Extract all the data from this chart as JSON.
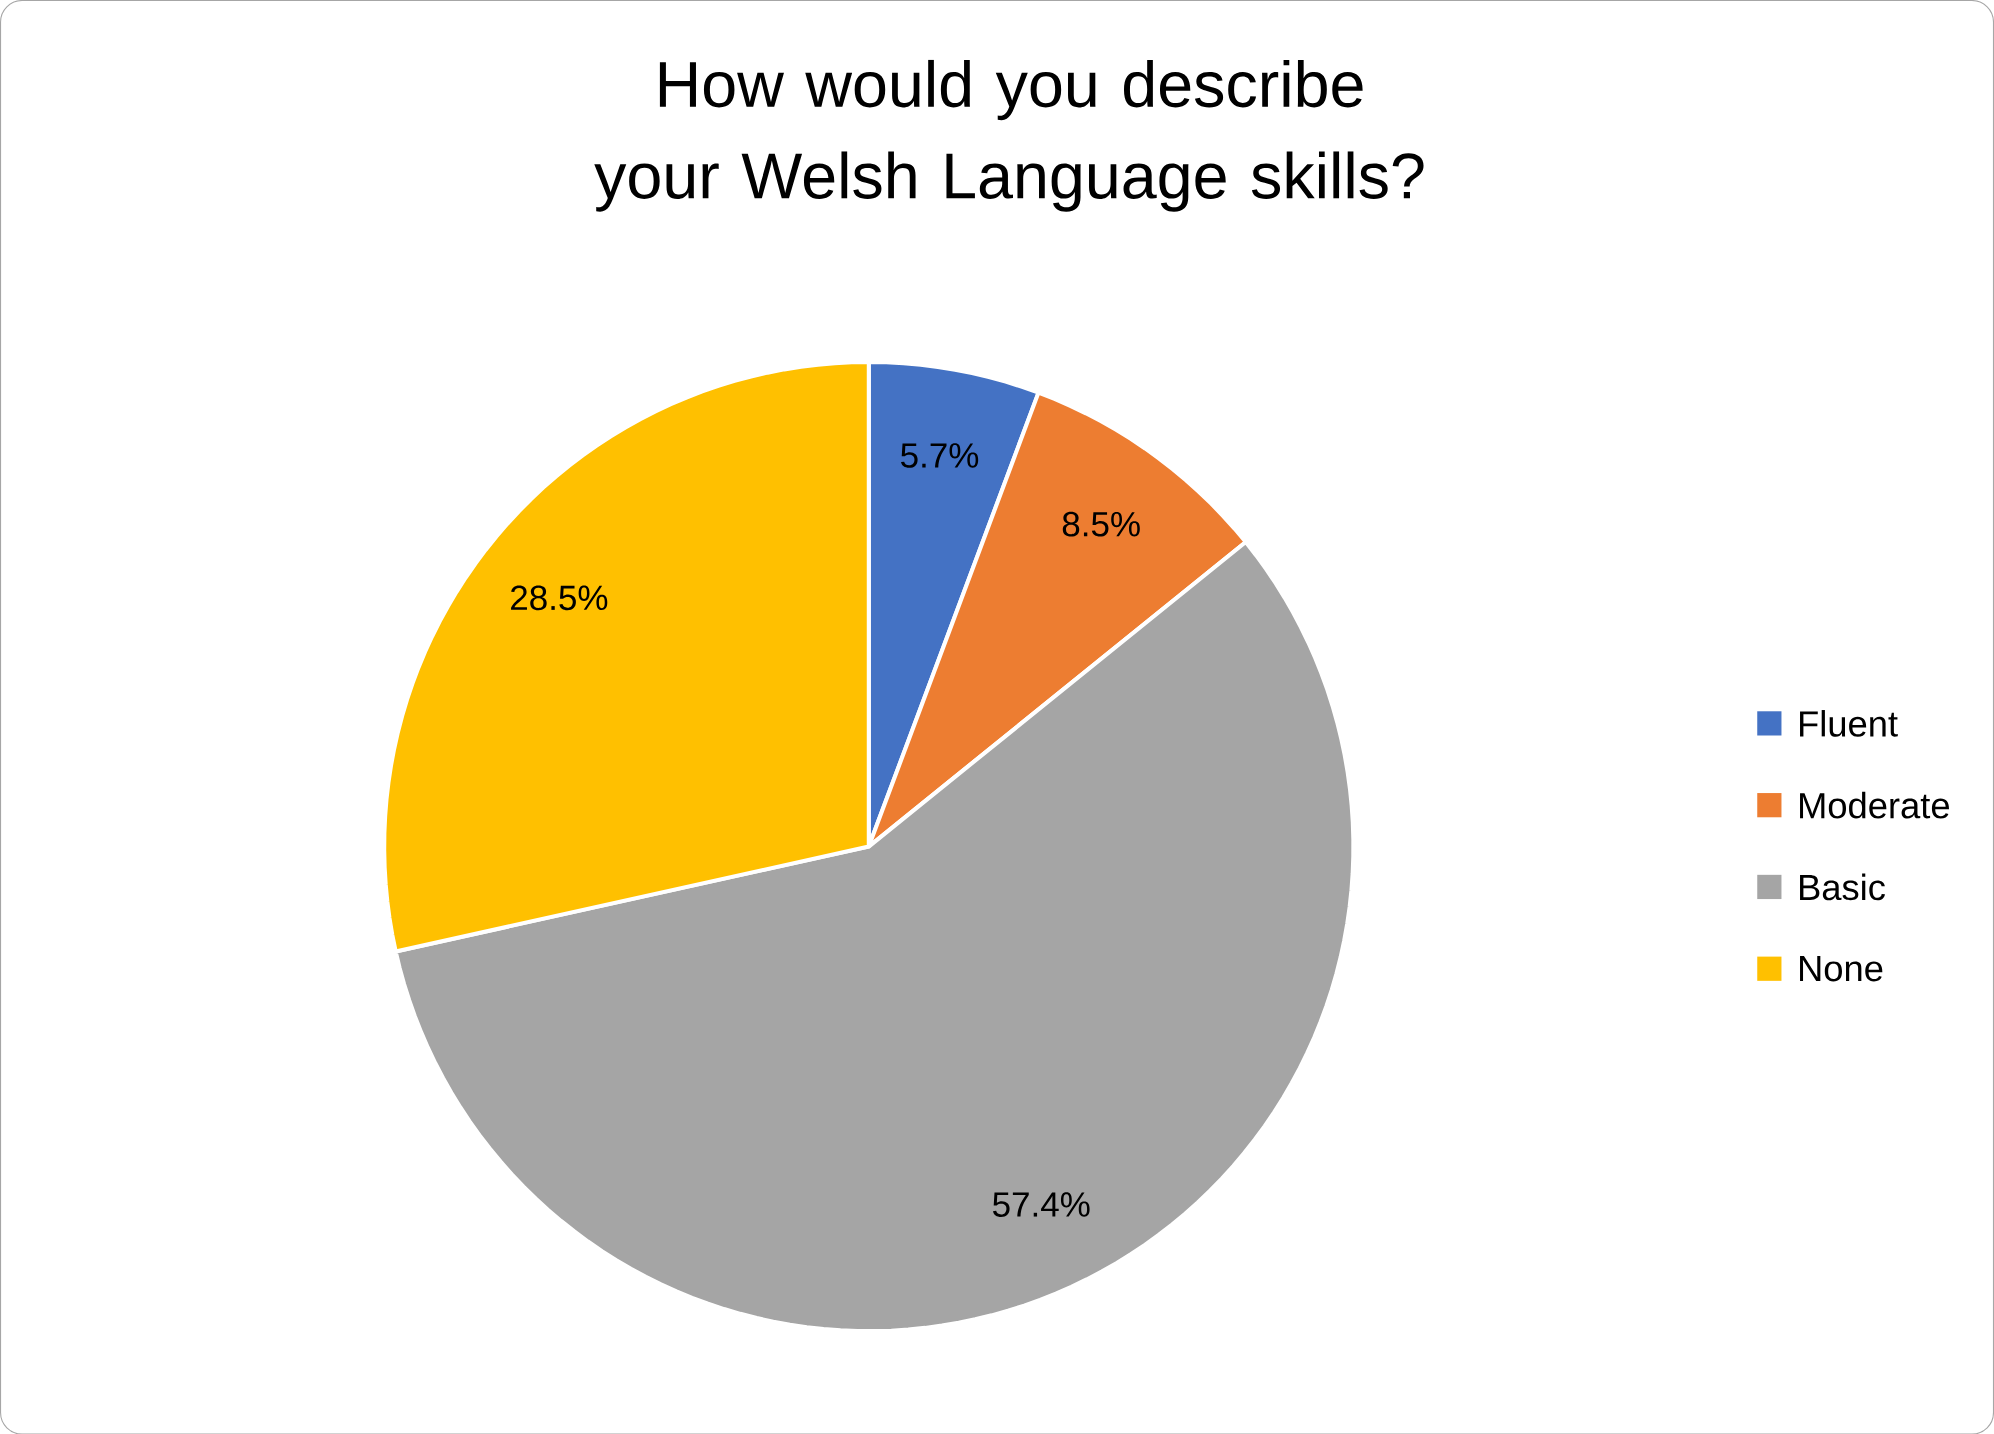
{
  "chart_data": {
    "type": "pie",
    "title": "How would you describe your Welsh Language skills?",
    "categories": [
      "Fluent",
      "Moderate",
      "Basic",
      "None"
    ],
    "values": [
      5.7,
      8.5,
      57.4,
      28.5
    ],
    "value_labels": [
      "5.7%",
      "8.5%",
      "57.4%",
      "28.5%"
    ],
    "colors": [
      "#4472c4",
      "#ed7d31",
      "#a5a5a5",
      "#ffc000"
    ],
    "legend": "right"
  }
}
